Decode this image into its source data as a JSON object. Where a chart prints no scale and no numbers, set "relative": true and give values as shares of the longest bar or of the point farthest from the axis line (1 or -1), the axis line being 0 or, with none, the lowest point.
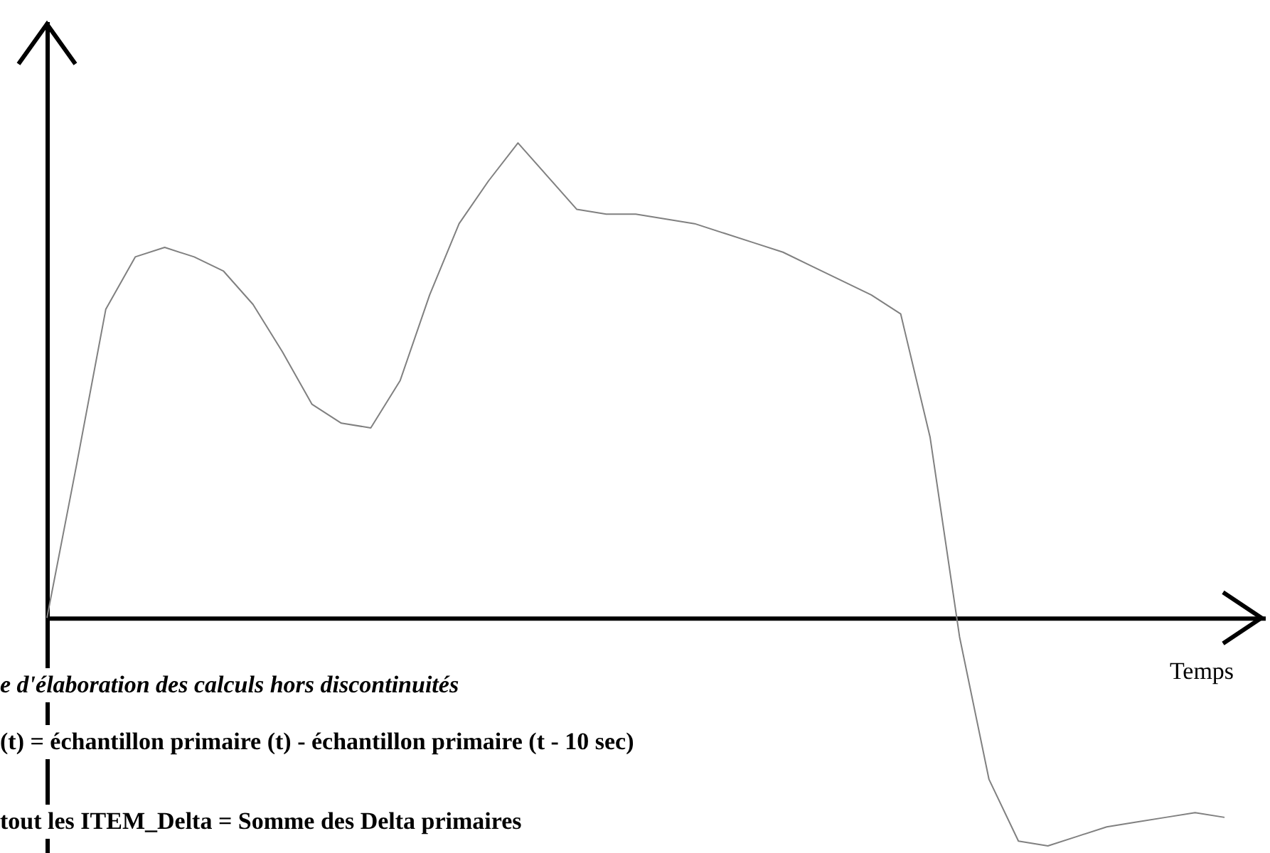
{
  "chart_data": {
    "type": "line",
    "relative": true,
    "xlabel": "Temps",
    "line_style": "solid",
    "annotations": [
      "e d'élaboration des calculs hors discontinuités",
      "(t) =  échantillon primaire (t) - échantillon primaire (t - 10 sec)",
      "tout les ITEM_Delta = Somme des Delta primaires"
    ],
    "categories": [
      null,
      null,
      null,
      null,
      null,
      null,
      null,
      null,
      null,
      null,
      null,
      null,
      null,
      null,
      null,
      null,
      null,
      null,
      null,
      null,
      null,
      null,
      null,
      null,
      null,
      null,
      null,
      null,
      null,
      null,
      null,
      null,
      null,
      null,
      null,
      null,
      null,
      null,
      null,
      null,
      null
    ],
    "series": [
      {
        "color": "#808080",
        "values": [
          0,
          0.32,
          0.65,
          0.76,
          0.78,
          0.76,
          0.73,
          0.66,
          0.56,
          0.45,
          0.41,
          0.4,
          0.5,
          0.68,
          0.83,
          0.92,
          1,
          0.93,
          0.86,
          0.85,
          0.85,
          0.84,
          0.83,
          0.81,
          0.79,
          0.77,
          0.74,
          0.71,
          0.68,
          0.64,
          0.38,
          -0.04,
          -0.34,
          -0.47,
          -0.48,
          -0.46,
          -0.44,
          -0.43,
          -0.42,
          -0.41,
          -0.42
        ]
      }
    ]
  }
}
